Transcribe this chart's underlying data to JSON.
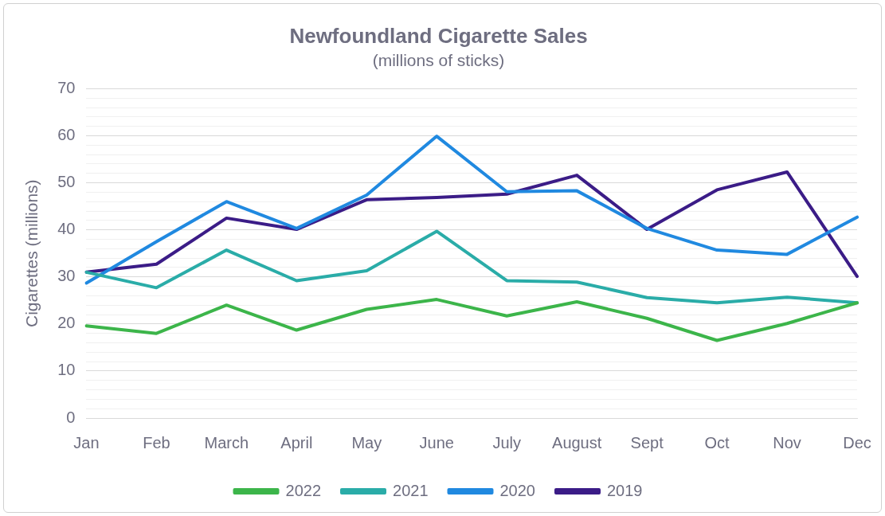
{
  "chart_data": {
    "type": "line",
    "title": "Newfoundland Cigarette Sales",
    "subtitle": "(millions of sticks)",
    "ylabel": "Cigarettes (millions)",
    "categories": [
      "Jan",
      "Feb",
      "March",
      "April",
      "May",
      "June",
      "July",
      "August",
      "Sept",
      "Oct",
      "Nov",
      "Dec"
    ],
    "series": [
      {
        "name": "2022",
        "color": "#3cb54a",
        "values": [
          19.6,
          18.0,
          24.0,
          18.7,
          23.1,
          25.2,
          21.7,
          24.7,
          21.2,
          16.5,
          20.1,
          24.5
        ]
      },
      {
        "name": "2021",
        "color": "#2aaca8",
        "values": [
          31.0,
          27.7,
          35.7,
          29.2,
          31.3,
          39.7,
          29.2,
          28.9,
          25.6,
          24.5,
          25.7,
          24.5
        ]
      },
      {
        "name": "2020",
        "color": "#2089e0",
        "values": [
          28.7,
          37.5,
          46.0,
          40.3,
          47.4,
          59.9,
          48.1,
          48.3,
          40.3,
          35.7,
          34.8,
          42.7
        ]
      },
      {
        "name": "2019",
        "color": "#3b1c87",
        "values": [
          31.0,
          32.7,
          42.5,
          40.1,
          46.4,
          46.9,
          47.6,
          51.6,
          40.1,
          48.5,
          52.3,
          30.1
        ]
      }
    ],
    "ylim": [
      0,
      70
    ],
    "yticks": [
      0,
      {
        "value": 2,
        "label": null
      },
      {
        "value": 4,
        "label": null
      },
      {
        "value": 6,
        "label": null
      },
      {
        "value": 8,
        "label": null
      },
      10,
      {
        "value": 12,
        "label": null
      },
      {
        "value": 14,
        "label": null
      },
      {
        "value": 16,
        "label": null
      },
      {
        "value": 18,
        "label": null
      },
      20,
      {
        "value": 22,
        "label": null
      },
      {
        "value": 24,
        "label": null
      },
      {
        "value": 26,
        "label": null
      },
      {
        "value": 28,
        "label": null
      },
      30,
      {
        "value": 32,
        "label": null
      },
      {
        "value": 34,
        "label": null
      },
      {
        "value": 36,
        "label": null
      },
      {
        "value": 38,
        "label": null
      },
      40,
      {
        "value": 42,
        "label": null
      },
      {
        "value": 44,
        "label": null
      },
      {
        "value": 46,
        "label": null
      },
      {
        "value": 48,
        "label": null
      },
      50,
      {
        "value": 52,
        "label": null
      },
      {
        "value": 54,
        "label": null
      },
      {
        "value": 56,
        "label": null
      },
      {
        "value": 58,
        "label": null
      },
      60,
      {
        "value": 62,
        "label": null
      },
      {
        "value": 64,
        "label": null
      },
      {
        "value": 66,
        "label": null
      },
      {
        "value": 68,
        "label": null
      },
      70
    ],
    "grid": "y",
    "legend": "bottom",
    "marker": "none",
    "line_style": "solid"
  }
}
